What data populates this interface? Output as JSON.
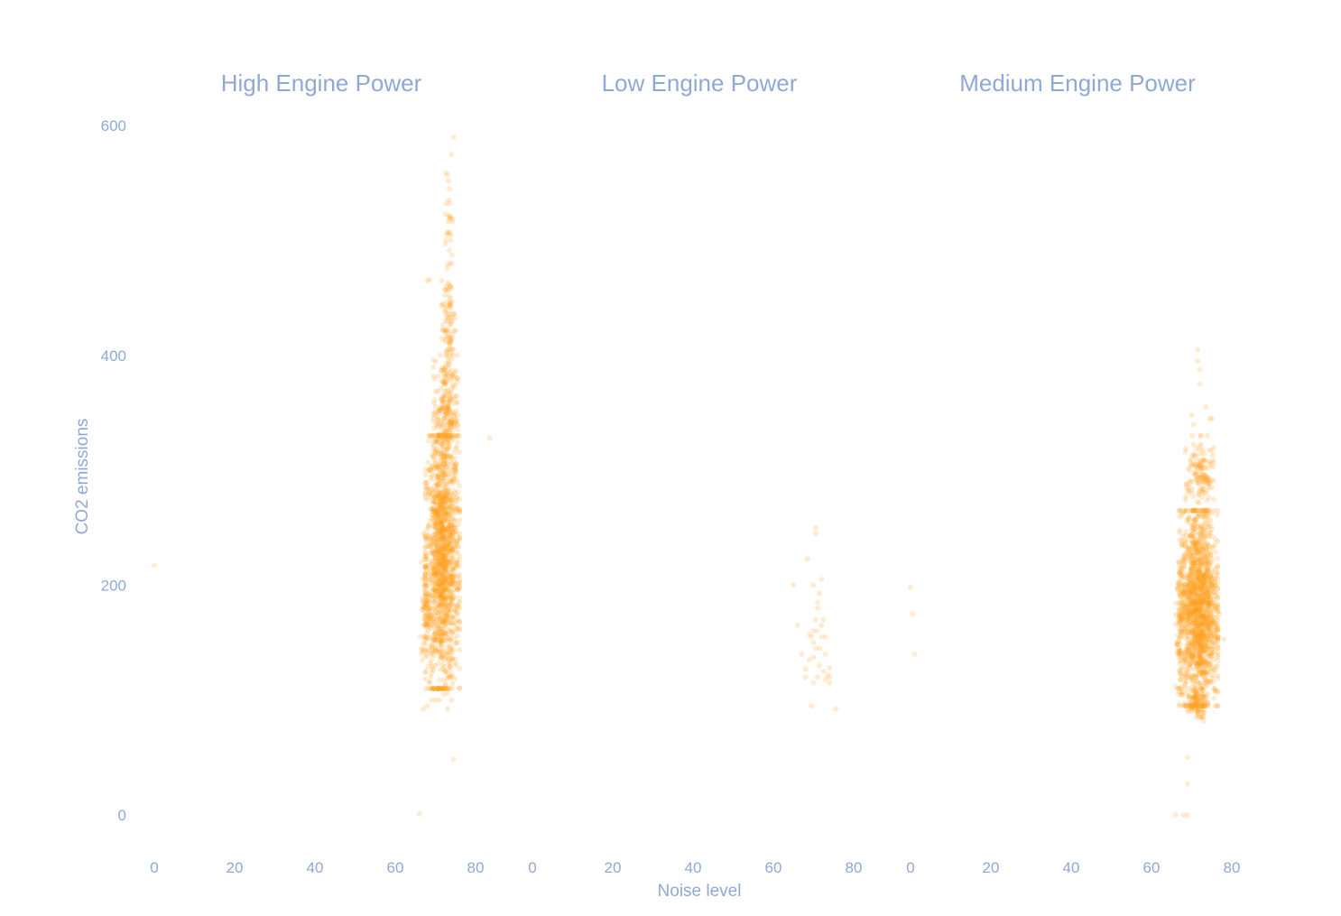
{
  "chart_data": {
    "type": "scatter",
    "xlabel": "Noise level",
    "ylabel": "CO2 emissions",
    "ylim": [
      -30,
      605
    ],
    "xlim": [
      -3,
      88
    ],
    "y_ticks": [
      0,
      200,
      400,
      600
    ],
    "x_ticks": [
      0,
      20,
      40,
      60,
      80
    ],
    "grid": false,
    "legend": "none",
    "colors": {
      "marker": "#ff9f1c",
      "text": "#8fa9d6"
    },
    "point_opacity": 0.2,
    "panels": [
      {
        "title": "High Engine Power",
        "points": [
          [
            0,
            217
          ],
          [
            66,
            1
          ],
          [
            74.5,
            48
          ],
          [
            83.5,
            328
          ],
          [
            66.5,
            140
          ],
          [
            66.2,
            155
          ],
          [
            67,
            92
          ],
          [
            68,
            95
          ],
          [
            69,
            100
          ],
          [
            70,
            100
          ],
          [
            71,
            100
          ],
          [
            73,
            92
          ],
          [
            74,
            100
          ],
          [
            68,
            465
          ],
          [
            68.5,
            466
          ],
          [
            71.5,
            465
          ],
          [
            72.5,
            497
          ],
          [
            73.8,
            500
          ],
          [
            73.8,
            520
          ],
          [
            73.5,
            545
          ],
          [
            74,
            575
          ],
          [
            74.5,
            590
          ],
          [
            73,
            557
          ],
          [
            73.8,
            460
          ],
          [
            74,
            430
          ],
          [
            73.5,
            405
          ],
          [
            75,
            380
          ],
          [
            67,
            245
          ],
          [
            67.5,
            240
          ],
          [
            67.5,
            225
          ],
          [
            68.5,
            300
          ],
          [
            75.5,
            330
          ],
          [
            75.5,
            290
          ],
          [
            75,
            250
          ],
          [
            71,
            110
          ],
          [
            72,
            105
          ],
          [
            73,
            106
          ]
        ],
        "dense": [
          {
            "x_range": [
              67.5,
              76
            ],
            "y_range": [
              110,
              330
            ],
            "count": 1400
          },
          {
            "x_range": [
              69.5,
              75.5
            ],
            "y_range": [
              300,
              400
            ],
            "count": 260
          },
          {
            "x_range": [
              71.5,
              75
            ],
            "y_range": [
              380,
              480
            ],
            "count": 80
          },
          {
            "x_range": [
              72.5,
              74.5
            ],
            "y_range": [
              460,
              560
            ],
            "count": 25
          },
          {
            "x_range": [
              66.5,
              69
            ],
            "y_range": [
              135,
              220
            ],
            "count": 80
          }
        ]
      },
      {
        "title": "Low Engine Power",
        "points": [
          [
            65,
            200
          ],
          [
            66,
            165
          ],
          [
            67,
            140
          ],
          [
            68,
            120
          ],
          [
            68,
            127
          ],
          [
            69,
            135
          ],
          [
            69.5,
            155
          ],
          [
            70,
            150
          ],
          [
            70,
            137
          ],
          [
            70.5,
            245
          ],
          [
            70.5,
            250
          ],
          [
            70,
            200
          ],
          [
            71,
            185
          ],
          [
            71,
            180
          ],
          [
            71.5,
            193
          ],
          [
            72,
            205
          ],
          [
            72,
            165
          ],
          [
            71.5,
            145
          ],
          [
            71.5,
            130
          ],
          [
            72,
            155
          ],
          [
            73,
            155
          ],
          [
            72.5,
            125
          ],
          [
            73,
            118
          ],
          [
            73.5,
            122
          ],
          [
            74,
            115
          ],
          [
            74,
            128
          ],
          [
            69.5,
            95
          ],
          [
            70,
            115
          ],
          [
            71,
            120
          ],
          [
            75.5,
            92
          ],
          [
            70,
            160
          ],
          [
            69,
            157
          ],
          [
            73,
            140
          ],
          [
            71,
            160
          ],
          [
            70.5,
            170
          ],
          [
            68.5,
            223
          ],
          [
            72.5,
            170
          ],
          [
            74,
            120
          ],
          [
            70.5,
            145
          ]
        ],
        "dense": []
      },
      {
        "title": "Medium Engine Power",
        "points": [
          [
            0,
            198
          ],
          [
            0.5,
            175
          ],
          [
            1,
            140
          ],
          [
            66,
            0
          ],
          [
            68,
            0
          ],
          [
            69,
            0
          ],
          [
            69,
            27
          ],
          [
            69,
            50
          ],
          [
            77,
            175
          ],
          [
            78,
            153
          ],
          [
            71.5,
            405
          ],
          [
            71.5,
            395
          ],
          [
            72,
            388
          ],
          [
            72,
            375
          ],
          [
            70,
            348
          ],
          [
            70.5,
            340
          ],
          [
            73.5,
            355
          ],
          [
            74.5,
            345
          ],
          [
            75,
            345
          ],
          [
            75.5,
            320
          ],
          [
            69.5,
            300
          ],
          [
            72,
            85
          ],
          [
            73,
            82
          ],
          [
            70,
            90
          ]
        ],
        "dense": [
          {
            "x_range": [
              67,
              76.5
            ],
            "y_range": [
              95,
              265
            ],
            "count": 1500
          },
          {
            "x_range": [
              68.5,
              75.5
            ],
            "y_range": [
              260,
              330
            ],
            "count": 140
          },
          {
            "x_range": [
              66,
              68.5
            ],
            "y_range": [
              105,
              220
            ],
            "count": 90
          },
          {
            "x_range": [
              69,
              74
            ],
            "y_range": [
              85,
              110
            ],
            "count": 90
          }
        ]
      }
    ]
  }
}
